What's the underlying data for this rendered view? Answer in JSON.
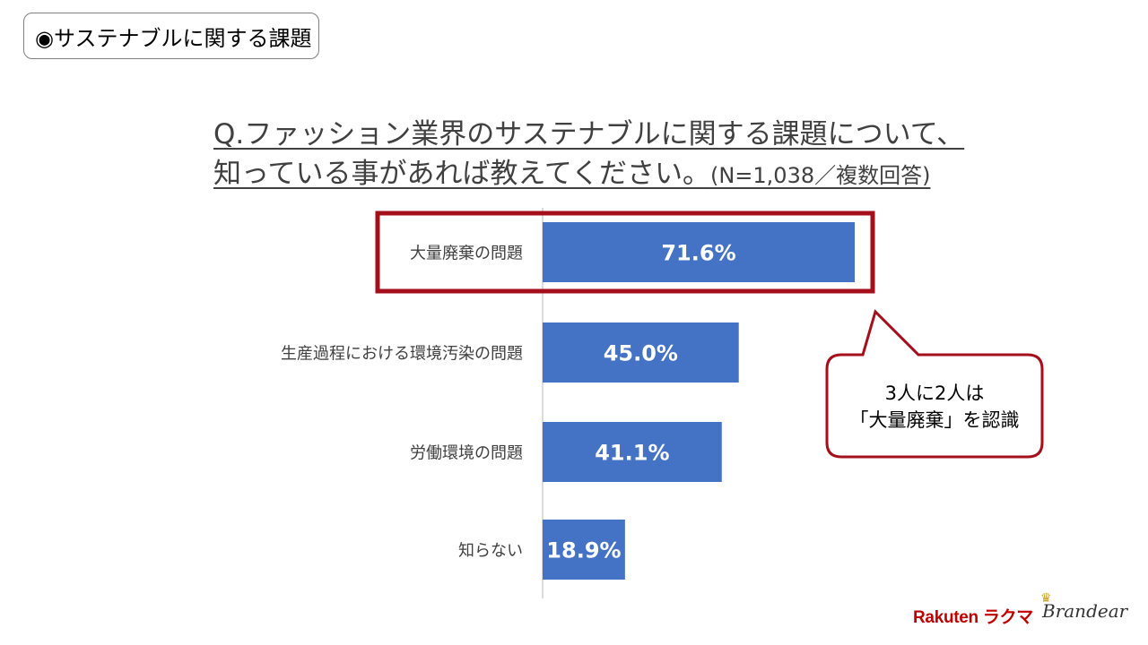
{
  "section_label": "◉サステナブルに関する課題",
  "question": {
    "line1": "Q.ファッション業界のサステナブルに関する課題について、",
    "line2": "知っている事があれば教えてください。",
    "note": "(N=1,038／複数回答)"
  },
  "callout": {
    "line1": "3人に2人は",
    "line2": "「大量廃棄」を認識"
  },
  "logos": {
    "rakuten": "Rakuten ラクマ",
    "brandear": "Brandear"
  },
  "colors": {
    "bar": "#4472c4",
    "highlight": "#a50e1b"
  },
  "chart_data": {
    "type": "bar",
    "orientation": "horizontal",
    "categories": [
      "大量廃棄の問題",
      "生産過程における環境汚染の問題",
      "労働環境の問題",
      "知らない"
    ],
    "values": [
      71.6,
      45.0,
      41.1,
      18.9
    ],
    "value_labels": [
      "71.6%",
      "45.0%",
      "41.1%",
      "18.9%"
    ],
    "unit": "%",
    "xlim": [
      0,
      100
    ],
    "highlighted_category": "大量廃棄の問題",
    "grid": false
  }
}
